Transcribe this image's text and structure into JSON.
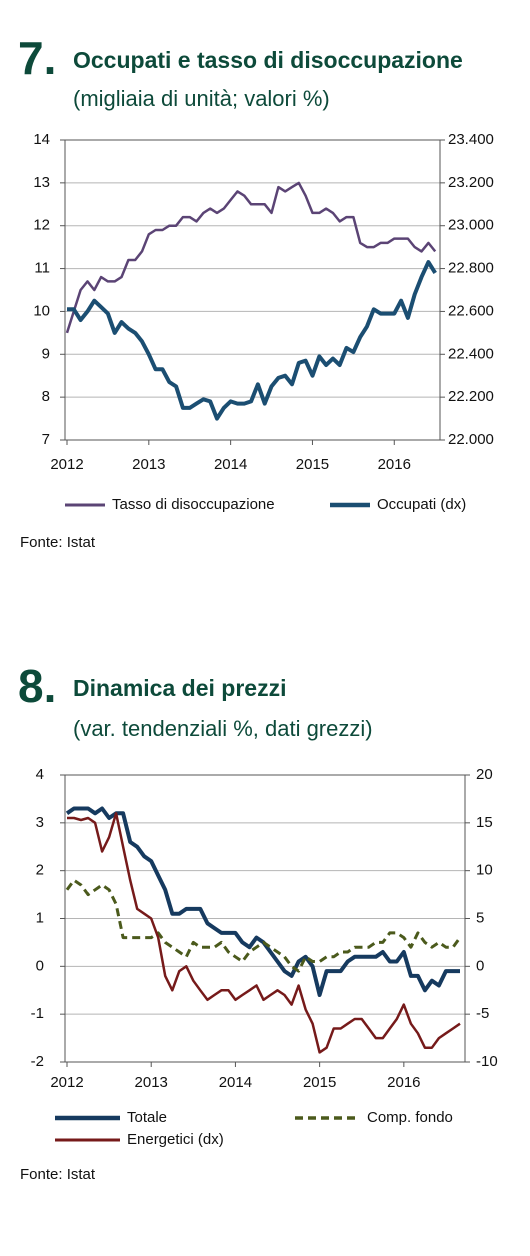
{
  "chart_data": [
    {
      "type": "line",
      "number": "7.",
      "title": "Occupati e tasso di disoccupazione",
      "subtitle": "(migliaia di unità; valori %)",
      "source": "Fonte: Istat",
      "categories": [
        "2012",
        null,
        null,
        null,
        null,
        null,
        null,
        null,
        null,
        null,
        null,
        null,
        "2013",
        null,
        null,
        null,
        null,
        null,
        null,
        null,
        null,
        null,
        null,
        null,
        "2014",
        null,
        null,
        null,
        null,
        null,
        null,
        null,
        null,
        null,
        null,
        null,
        "2015",
        null,
        null,
        null,
        null,
        null,
        null,
        null,
        null,
        null,
        null,
        null,
        "2016",
        null,
        null,
        null,
        null,
        null,
        null
      ],
      "ylim": [
        7,
        14
      ],
      "yticks": [
        7,
        8,
        9,
        10,
        11,
        12,
        13,
        14
      ],
      "y2lim": [
        22000,
        23400
      ],
      "y2ticks": [
        {
          "value": 22000,
          "label": "22.000"
        },
        {
          "value": 22200,
          "label": "22.200"
        },
        {
          "value": 22400,
          "label": "22.400"
        },
        {
          "value": 22600,
          "label": "22.600"
        },
        {
          "value": 22800,
          "label": "22.800"
        },
        {
          "value": 23000,
          "label": "23.000"
        },
        {
          "value": 23200,
          "label": "23.200"
        },
        {
          "value": 23400,
          "label": "23.400"
        }
      ],
      "grid": true,
      "series": [
        {
          "name": "Tasso di disoccupazione",
          "color": "#5b4475",
          "width": 2.5,
          "values": [
            9.5,
            10.0,
            10.5,
            10.7,
            10.5,
            10.8,
            10.7,
            10.7,
            10.8,
            11.2,
            11.2,
            11.4,
            11.8,
            11.9,
            11.9,
            12.0,
            12.0,
            12.2,
            12.2,
            12.1,
            12.3,
            12.4,
            12.3,
            12.4,
            12.6,
            12.8,
            12.7,
            12.5,
            12.5,
            12.5,
            12.3,
            12.9,
            12.8,
            12.9,
            13.0,
            12.7,
            12.3,
            12.3,
            12.4,
            12.3,
            12.1,
            12.2,
            12.2,
            11.6,
            11.5,
            11.5,
            11.6,
            11.6,
            11.7,
            11.7,
            11.7,
            11.5,
            11.4,
            11.6,
            11.4
          ]
        },
        {
          "name": "Occupati (dx)",
          "color": "#1b4e72",
          "width": 4,
          "axis": "y2",
          "values": [
            22610,
            22610,
            22560,
            22600,
            22650,
            22620,
            22590,
            22500,
            22550,
            22520,
            22500,
            22460,
            22400,
            22330,
            22330,
            22270,
            22250,
            22150,
            22150,
            22170,
            22190,
            22180,
            22100,
            22150,
            22180,
            22170,
            22170,
            22180,
            22260,
            22170,
            22250,
            22290,
            22300,
            22260,
            22360,
            22370,
            22300,
            22390,
            22350,
            22380,
            22350,
            22430,
            22410,
            22480,
            22530,
            22610,
            22590,
            22590,
            22590,
            22650,
            22570,
            22680,
            22760,
            22830,
            22780
          ]
        }
      ]
    },
    {
      "type": "line",
      "number": "8.",
      "title": "Dinamica dei prezzi",
      "subtitle": "(var. tendenziali %, dati grezzi)",
      "source": "Fonte: Istat",
      "categories": [
        "2012",
        null,
        null,
        null,
        null,
        null,
        null,
        null,
        null,
        null,
        null,
        null,
        "2013",
        null,
        null,
        null,
        null,
        null,
        null,
        null,
        null,
        null,
        null,
        null,
        "2014",
        null,
        null,
        null,
        null,
        null,
        null,
        null,
        null,
        null,
        null,
        null,
        "2015",
        null,
        null,
        null,
        null,
        null,
        null,
        null,
        null,
        null,
        null,
        null,
        "2016",
        null,
        null,
        null,
        null,
        null,
        null,
        null,
        null
      ],
      "ylim": [
        -2,
        4
      ],
      "yticks": [
        -2,
        -1,
        0,
        1,
        2,
        3,
        4
      ],
      "y2lim": [
        -10,
        20
      ],
      "y2ticks": [
        -10,
        -5,
        0,
        5,
        10,
        15,
        20
      ],
      "grid": true,
      "series": [
        {
          "name": "Totale",
          "color": "#163a5f",
          "width": 4,
          "values": [
            3.2,
            3.3,
            3.3,
            3.3,
            3.2,
            3.3,
            3.1,
            3.2,
            3.2,
            2.6,
            2.5,
            2.3,
            2.2,
            1.9,
            1.6,
            1.1,
            1.1,
            1.2,
            1.2,
            1.2,
            0.9,
            0.8,
            0.7,
            0.7,
            0.7,
            0.5,
            0.4,
            0.6,
            0.5,
            0.3,
            0.1,
            -0.1,
            -0.2,
            0.1,
            0.2,
            0.0,
            -0.6,
            -0.1,
            -0.1,
            -0.1,
            0.1,
            0.2,
            0.2,
            0.2,
            0.2,
            0.3,
            0.1,
            0.1,
            0.3,
            -0.2,
            -0.2,
            -0.5,
            -0.3,
            -0.4,
            -0.1,
            -0.1,
            -0.1
          ]
        },
        {
          "name": "Comp. fondo",
          "color": "#4b5a1c",
          "width": 3,
          "dashed": true,
          "values": [
            1.6,
            1.8,
            1.7,
            1.5,
            1.6,
            1.7,
            1.6,
            1.3,
            0.6,
            0.6,
            0.6,
            0.6,
            0.6,
            0.7,
            0.5,
            0.4,
            0.3,
            0.2,
            0.5,
            0.4,
            0.4,
            0.4,
            0.5,
            0.3,
            0.2,
            0.1,
            0.3,
            0.4,
            0.5,
            0.4,
            0.3,
            0.2,
            0.0,
            -0.1,
            0.2,
            0.1,
            0.1,
            0.2,
            0.2,
            0.3,
            0.3,
            0.4,
            0.4,
            0.4,
            0.5,
            0.5,
            0.7,
            0.7,
            0.6,
            0.4,
            0.7,
            0.5,
            0.4,
            0.5,
            0.4,
            0.4,
            0.6
          ]
        },
        {
          "name": "Energetici (dx)",
          "color": "#761a1a",
          "width": 2.5,
          "axis": "y2",
          "values": [
            15.5,
            15.5,
            15.3,
            15.5,
            15.0,
            12.0,
            13.5,
            16.0,
            12.5,
            9.0,
            6.0,
            5.5,
            5.0,
            3.0,
            -1.0,
            -2.5,
            -0.5,
            0.0,
            -1.5,
            -2.5,
            -3.5,
            -3.0,
            -2.5,
            -2.5,
            -3.5,
            -3.0,
            -2.5,
            -2.0,
            -3.5,
            -3.0,
            -2.5,
            -3.0,
            -4.0,
            -2.0,
            -4.5,
            -6.0,
            -9.0,
            -8.5,
            -6.5,
            -6.5,
            -6.0,
            -5.5,
            -5.5,
            -6.5,
            -7.5,
            -7.5,
            -6.5,
            -5.5,
            -4.0,
            -6.0,
            -7.0,
            -8.5,
            -8.5,
            -7.5,
            -7.0,
            -6.5,
            -6.0
          ]
        }
      ]
    }
  ]
}
